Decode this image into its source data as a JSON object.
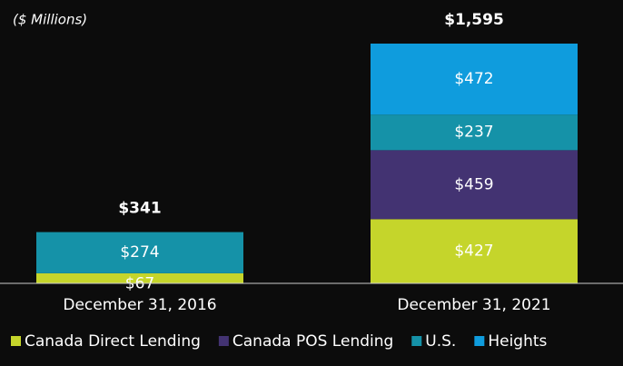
{
  "chart_data": {
    "type": "stacked-bar",
    "subtitle": "($ Millions)",
    "categories": [
      "December 31, 2016",
      "December 31, 2021"
    ],
    "series": [
      {
        "name": "Canada Direct Lending",
        "color": "#c5d52b",
        "values": [
          67,
          427
        ],
        "value_labels": [
          "$67",
          "$427"
        ]
      },
      {
        "name": "Canada POS Lending",
        "color": "#433372",
        "values": [
          null,
          459
        ],
        "value_labels": [
          null,
          "$459"
        ]
      },
      {
        "name": "U.S.",
        "color": "#1592a8",
        "values": [
          274,
          237
        ],
        "value_labels": [
          "$274",
          "$237"
        ]
      },
      {
        "name": "Heights",
        "color": "#0f9cdd",
        "values": [
          null,
          472
        ],
        "value_labels": [
          null,
          "$472"
        ]
      }
    ],
    "totals": [
      341,
      1595
    ],
    "total_labels": [
      "$341",
      "$1,595"
    ]
  }
}
